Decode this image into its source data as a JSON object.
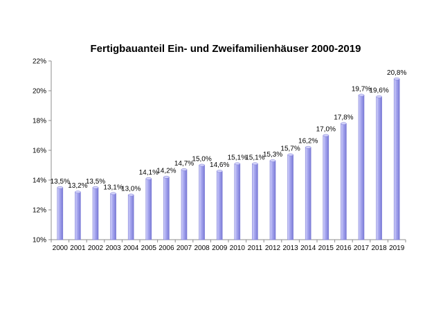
{
  "chart_data": {
    "type": "bar",
    "title": "Fertigbauanteil Ein- und Zweifamilienhäuser 2000-2019",
    "xlabel": "",
    "ylabel": "",
    "categories": [
      "2000",
      "2001",
      "2002",
      "2003",
      "2004",
      "2005",
      "2006",
      "2007",
      "2008",
      "2009",
      "2010",
      "2011",
      "2012",
      "2013",
      "2014",
      "2015",
      "2016",
      "2017",
      "2018",
      "2019"
    ],
    "values": [
      13.5,
      13.2,
      13.5,
      13.1,
      13.0,
      14.1,
      14.2,
      14.7,
      15.0,
      14.6,
      15.1,
      15.1,
      15.3,
      15.7,
      16.2,
      17.0,
      17.8,
      19.7,
      19.6,
      20.8
    ],
    "data_labels": [
      "13,5%",
      "13,2%",
      "13,5%",
      "13,1%",
      "13,0%",
      "14,1%",
      "14,2%",
      "14,7%",
      "15,0%",
      "14,6%",
      "15,1%",
      "15,1%",
      "15,3%",
      "15,7%",
      "16,2%",
      "17,0%",
      "17,8%",
      "19,7%",
      "19,6%",
      "20,8%"
    ],
    "ylim": [
      10,
      22
    ],
    "yticks": [
      10,
      12,
      14,
      16,
      18,
      20,
      22
    ],
    "ytick_labels": [
      "10%",
      "12%",
      "14%",
      "16%",
      "18%",
      "20%",
      "22%"
    ],
    "grid": false,
    "legend": "none",
    "colors": {
      "bar_fill": "#a9a9f0",
      "bar_light": "#d4d4fa",
      "bar_dark": "#7b7bd6",
      "axis": "#8c8c8c"
    }
  }
}
